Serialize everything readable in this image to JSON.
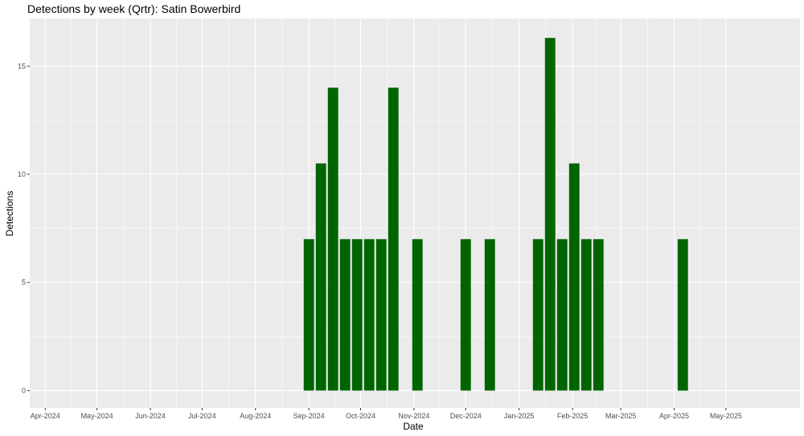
{
  "chart_data": {
    "type": "bar",
    "title": "Detections by week (Qrtr): Satin Bowerbird",
    "xlabel": "Date",
    "ylabel": "Detections",
    "x_axis_type": "date",
    "xlim": [
      "2024-03-23",
      "2025-06-13"
    ],
    "ylim": [
      -0.8,
      17.2
    ],
    "y_ticks": [
      0,
      5,
      10,
      15
    ],
    "y_tick_labels": [
      "0",
      "5",
      "10",
      "15"
    ],
    "x_ticks": [
      "2024-04-01",
      "2024-05-01",
      "2024-06-01",
      "2024-07-01",
      "2024-08-01",
      "2024-09-01",
      "2024-10-01",
      "2024-11-01",
      "2024-12-01",
      "2025-01-01",
      "2025-02-01",
      "2025-03-01",
      "2025-04-01",
      "2025-05-01"
    ],
    "x_tick_labels": [
      "Apr-2024",
      "May-2024",
      "Jun-2024",
      "Jul-2024",
      "Aug-2024",
      "Sep-2024",
      "Oct-2024",
      "Nov-2024",
      "Dec-2024",
      "Jan-2025",
      "Feb-2025",
      "Mar-2025",
      "Apr-2025",
      "May-2025"
    ],
    "grid": true,
    "legend": "none",
    "bar_color": "#006400",
    "panel_background": "#ebebeb",
    "series": [
      {
        "x": [
          "2024-09-01",
          "2024-09-08",
          "2024-09-15",
          "2024-09-22",
          "2024-09-29",
          "2024-10-06",
          "2024-10-13",
          "2024-10-20",
          "2024-11-03",
          "2024-12-01",
          "2024-12-15",
          "2025-01-12",
          "2025-01-19",
          "2025-01-26",
          "2025-02-02",
          "2025-02-09",
          "2025-02-16",
          "2025-04-06"
        ],
        "values": [
          7.0,
          10.5,
          14.0,
          7.0,
          7.0,
          7.0,
          7.0,
          14.0,
          7.0,
          7.0,
          7.0,
          7.0,
          16.3,
          7.0,
          10.5,
          7.0,
          7.0,
          7.0
        ]
      }
    ]
  }
}
